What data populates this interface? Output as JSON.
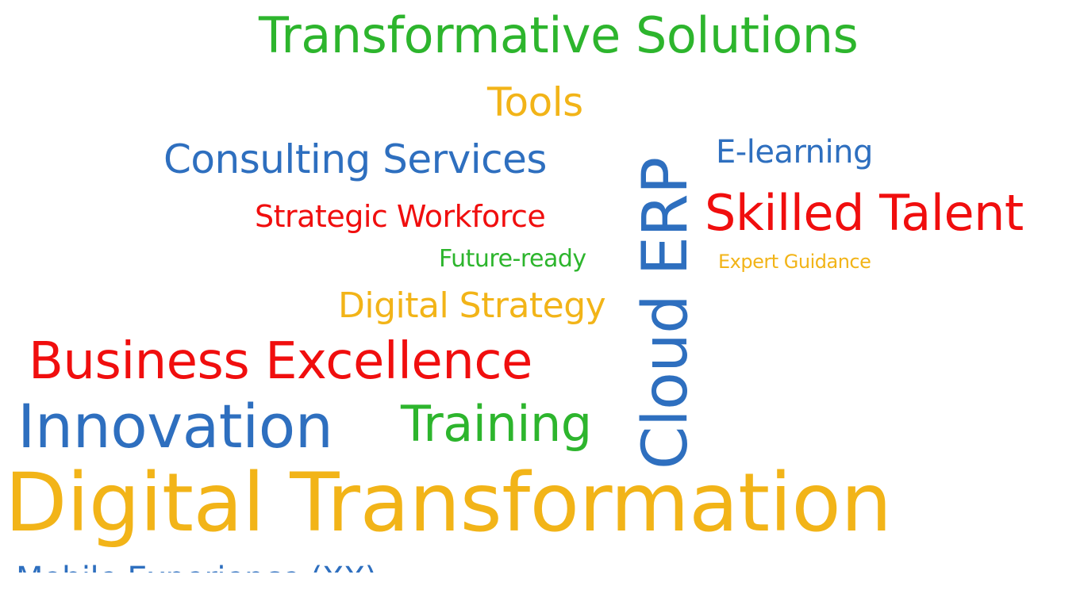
{
  "colors": {
    "green": "#2db52d",
    "yellow": "#f2b418",
    "blue": "#2e6fbf",
    "red": "#f00e0e"
  },
  "words": [
    {
      "id": "transformative-solutions",
      "text": "Transformative Solutions",
      "color": "green"
    },
    {
      "id": "tools",
      "text": "Tools",
      "color": "yellow"
    },
    {
      "id": "cloud-erp",
      "text": "Cloud ERP",
      "color": "blue",
      "orientation": "vertical"
    },
    {
      "id": "consulting-services",
      "text": "Consulting Services",
      "color": "blue"
    },
    {
      "id": "e-learning",
      "text": "E-learning",
      "color": "blue"
    },
    {
      "id": "strategic-workforce",
      "text": "Strategic Workforce",
      "color": "red"
    },
    {
      "id": "skilled-talent",
      "text": "Skilled Talent",
      "color": "red"
    },
    {
      "id": "future-ready",
      "text": "Future-ready",
      "color": "green"
    },
    {
      "id": "expert-guidance",
      "text": "Expert Guidance",
      "color": "yellow"
    },
    {
      "id": "digital-strategy",
      "text": "Digital Strategy",
      "color": "yellow"
    },
    {
      "id": "business-excellence",
      "text": "Business Excellence",
      "color": "red"
    },
    {
      "id": "innovation",
      "text": "Innovation",
      "color": "blue"
    },
    {
      "id": "training",
      "text": "Training",
      "color": "green"
    },
    {
      "id": "digital-transformation",
      "text": "Digital Transformation",
      "color": "yellow"
    },
    {
      "id": "partial-bottom-word",
      "text": "Mobile Experience (XX)",
      "color": "blue"
    }
  ]
}
